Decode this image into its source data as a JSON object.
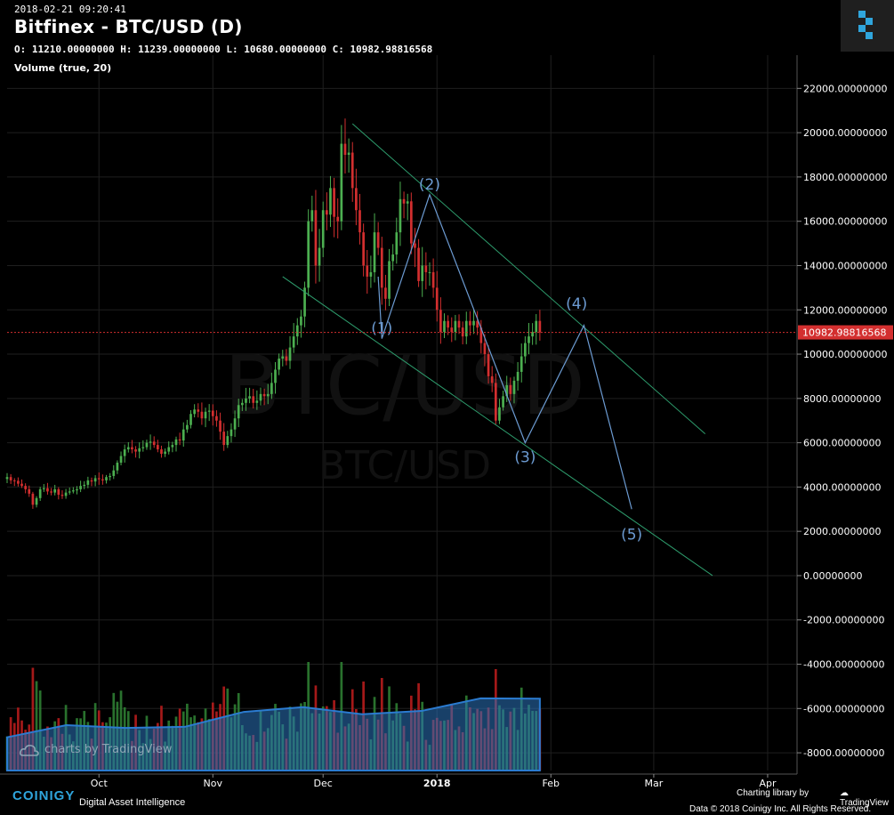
{
  "header": {
    "timestamp": "2018-02-21 09:20:41",
    "title": "Bitfinex - BTC/USD (D)",
    "ohlc": "O: 11210.00000000 H: 11239.00000000 L: 10680.00000000 C: 10982.98816568",
    "volume_label": "Volume (true, 20)"
  },
  "watermark": {
    "main": "BTC/USD",
    "sub": "BTC/USD",
    "tv": "charts by TradingView"
  },
  "footer": {
    "brand": "COINIGY",
    "tagline": "Digital Asset Intelligence",
    "charting": "Charting library by",
    "tv": "TradingView",
    "copyright": "Data © 2018  Coinigy Inc. All Rights Reserved."
  },
  "colors": {
    "up": "#4caf50",
    "down": "#d32f2f",
    "annotation": "#6c9bd2",
    "channel": "#2e9e6e",
    "price_line": "#d32f2f",
    "grid": "#1f1f1f"
  },
  "chart_data": {
    "type": "candlestick",
    "title": "Bitfinex - BTC/USD (D)",
    "ylim": [
      -8800,
      23500
    ],
    "y_ticks": [
      22000,
      20000,
      18000,
      16000,
      14000,
      12000,
      10000,
      8000,
      6000,
      4000,
      2000,
      0,
      -2000,
      -4000,
      -6000,
      -8000
    ],
    "y_tick_labels": [
      "22000.00000000",
      "20000.00000000",
      "18000.00000000",
      "16000.00000000",
      "14000.00000000",
      "12000.00000000",
      "10000.00000000",
      "8000.00000000",
      "6000.00000000",
      "4000.00000000",
      "2000.00000000",
      "0.00000000",
      "-2000.00000000",
      "-4000.00000000",
      "-6000.00000000",
      "-8000.00000000"
    ],
    "x_labels": [
      {
        "day": 25,
        "label": "Oct"
      },
      {
        "day": 56,
        "label": "Nov"
      },
      {
        "day": 86,
        "label": "Dec"
      },
      {
        "day": 117,
        "label": "2018"
      },
      {
        "day": 148,
        "label": "Feb"
      },
      {
        "day": 176,
        "label": "Mar"
      },
      {
        "day": 207,
        "label": "Apr"
      }
    ],
    "last_price": 10982.98816568,
    "last_price_label": "10982.98816568",
    "close_series": {
      "start_day": 0,
      "values": [
        4450,
        4300,
        4280,
        4150,
        4050,
        3900,
        3700,
        3200,
        3500,
        3900,
        3950,
        3800,
        3750,
        3900,
        3650,
        3600,
        3750,
        3800,
        3850,
        3900,
        4050,
        4100,
        4300,
        4250,
        4400,
        4350,
        4300,
        4450,
        4500,
        4750,
        5100,
        5400,
        5700,
        5800,
        5700,
        5600,
        5750,
        5800,
        6000,
        6050,
        5900,
        5700,
        5500,
        5600,
        5800,
        5900,
        6150,
        6100,
        6600,
        6800,
        7300,
        7500,
        7400,
        7100,
        7400,
        7450,
        7200,
        7000,
        6500,
        5900,
        6300,
        6600,
        7100,
        7700,
        7800,
        8000,
        8100,
        7800,
        7900,
        8200,
        8100,
        8200,
        8700,
        9300,
        9800,
        9900,
        9700,
        10300,
        10800,
        11300,
        11700,
        13000,
        16000,
        16500,
        14000,
        14800,
        16500,
        16300,
        17500,
        16200,
        16000,
        19500,
        19000,
        19100,
        17500,
        16500,
        15500,
        14000,
        13500,
        13700,
        15500,
        14800,
        13000,
        12500,
        14200,
        14500,
        15500,
        17000,
        16800,
        16900,
        15000,
        14800,
        13300,
        14000,
        13700,
        13700,
        13000,
        12000,
        11000,
        11500,
        11200,
        11000,
        11500,
        11200,
        10800,
        11500,
        11300,
        11500,
        11200,
        10500,
        10000,
        9000,
        8700,
        7000,
        7600,
        8100,
        8600,
        8200,
        8800,
        9200,
        9900,
        10500,
        10800,
        11000,
        11500,
        10982
      ]
    },
    "volume_ma": [
      0.6,
      0.7,
      0.8,
      0.9,
      1.0,
      1.05,
      1.1,
      1.15,
      1.2,
      1.25
    ],
    "elliott_labels": [
      {
        "label": "(1)",
        "day": 102,
        "price": 10700
      },
      {
        "label": "(2)",
        "day": 115,
        "price": 17200
      },
      {
        "label": "(3)",
        "day": 141,
        "price": 6000
      },
      {
        "label": "(4)",
        "day": 155,
        "price": 11800
      },
      {
        "label": "(5)",
        "day": 170,
        "price": 2500
      }
    ],
    "wave_path": [
      [
        101,
        13500
      ],
      [
        102,
        10700
      ],
      [
        115,
        17200
      ],
      [
        141,
        6000
      ],
      [
        157,
        11300
      ],
      [
        170,
        3000
      ]
    ],
    "channel_upper": [
      [
        94,
        20400
      ],
      [
        190,
        6400
      ]
    ],
    "channel_lower": [
      [
        75,
        13500
      ],
      [
        192,
        0
      ]
    ]
  }
}
